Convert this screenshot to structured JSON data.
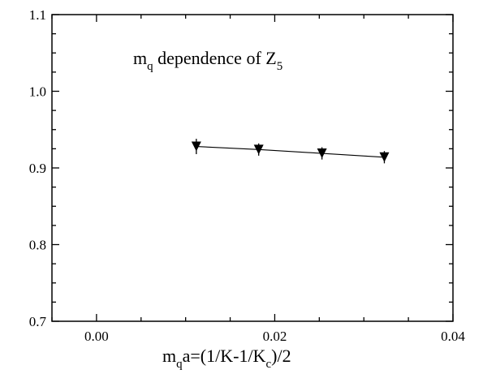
{
  "chart_data": {
    "type": "scatter",
    "title": {
      "main": "m",
      "sub_q": "q",
      "mid": " dependence of Z",
      "sub_5": "5"
    },
    "xlabel": {
      "a": "m",
      "sub_q": "q",
      "b": "a=(1/K-1/K",
      "sub_c": "c",
      "c": ")/2"
    },
    "ylabel": "",
    "xlim": [
      -0.005,
      0.04
    ],
    "ylim": [
      0.7,
      1.1
    ],
    "x_ticks": [
      {
        "value": 0.0,
        "label": "0.00"
      },
      {
        "value": 0.02,
        "label": "0.02"
      },
      {
        "value": 0.04,
        "label": "0.04"
      }
    ],
    "y_ticks": [
      {
        "value": 0.7,
        "label": "0.7"
      },
      {
        "value": 0.8,
        "label": "0.8"
      },
      {
        "value": 0.9,
        "label": "0.9"
      },
      {
        "value": 1.0,
        "label": "1.0"
      },
      {
        "value": 1.1,
        "label": "1.1"
      }
    ],
    "grid": false,
    "legend": "none",
    "marker": "down-triangle",
    "series": [
      {
        "x": [
          0.0112,
          0.0182,
          0.0253,
          0.0323
        ],
        "y": [
          0.928,
          0.924,
          0.919,
          0.914
        ],
        "yerr": [
          0.01,
          0.008,
          0.008,
          0.008
        ],
        "fit": "line"
      }
    ]
  }
}
